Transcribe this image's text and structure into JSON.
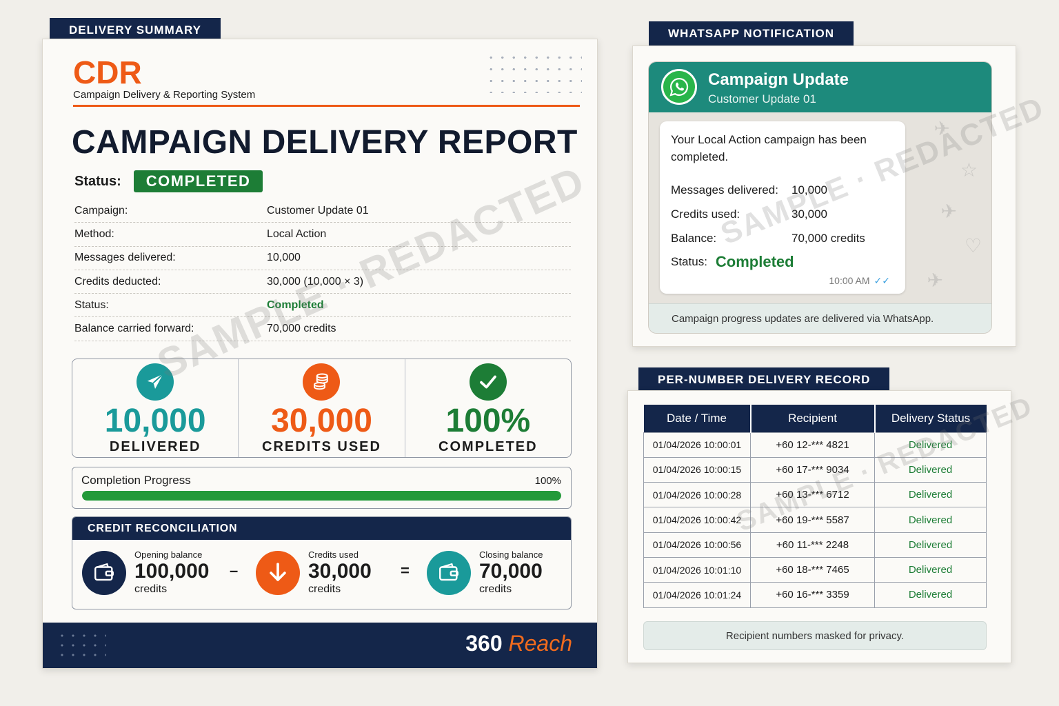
{
  "delivery_summary": {
    "tab": "DELIVERY SUMMARY",
    "brand": "CDR",
    "brand_subtitle": "Campaign Delivery & Reporting System",
    "title": "CAMPAIGN DELIVERY REPORT",
    "status_label": "Status:",
    "status_value": "COMPLETED",
    "details": [
      {
        "label": "Campaign:",
        "value": "Customer Update 01"
      },
      {
        "label": "Method:",
        "value": "Local Action"
      },
      {
        "label": "Messages delivered:",
        "value": "10,000"
      },
      {
        "label": "Credits deducted:",
        "value": "30,000 (10,000 × 3)"
      },
      {
        "label": "Status:",
        "value": "Completed"
      },
      {
        "label": "Balance carried forward:",
        "value": "70,000 credits"
      }
    ],
    "stats": [
      {
        "value": "10,000",
        "label": "DELIVERED",
        "icon": "paper-plane-icon",
        "color": "#1a9a9a"
      },
      {
        "value": "30,000",
        "label": "CREDITS USED",
        "icon": "coins-icon",
        "color": "#ee5a16"
      },
      {
        "value": "100%",
        "label": "COMPLETED",
        "icon": "checkmark-icon",
        "color": "#1d7d36"
      }
    ],
    "progress": {
      "label": "Completion Progress",
      "value_text": "100%",
      "fraction": 1.0
    },
    "reconciliation": {
      "title": "CREDIT RECONCILIATION",
      "opening": {
        "label": "Opening balance",
        "value": "100,000",
        "unit": "credits"
      },
      "minus": "–",
      "used": {
        "label": "Credits used",
        "value": "30,000",
        "unit": "credits"
      },
      "equals": "=",
      "closing": {
        "label": "Closing balance",
        "value": "70,000",
        "unit": "credits"
      }
    },
    "footer_logo_a": "360 ",
    "footer_logo_b": "Reach",
    "watermark": "SAMPLE · REDACTED"
  },
  "whatsapp": {
    "tab": "WHATSAPP NOTIFICATION",
    "title": "Campaign Update",
    "subtitle": "Customer Update 01",
    "message": "Your Local Action campaign has been completed.",
    "rows": [
      {
        "label": "Messages delivered:",
        "value": "10,000"
      },
      {
        "label": "Credits used:",
        "value": "30,000"
      },
      {
        "label": "Balance:",
        "value": "70,000 credits"
      }
    ],
    "status_label": "Status:",
    "status_value": "Completed",
    "time": "10:00 AM",
    "ticks": "✓✓",
    "footer": "Campaign progress updates are delivered via WhatsApp.",
    "watermark": "SAMPLE · REDACTED"
  },
  "records": {
    "tab": "PER-NUMBER DELIVERY RECORD",
    "columns": [
      "Date / Time",
      "Recipient",
      "Delivery Status"
    ],
    "rows": [
      [
        "01/04/2026 10:00:01",
        "+60 12-*** 4821",
        "Delivered"
      ],
      [
        "01/04/2026 10:00:15",
        "+60 17-*** 9034",
        "Delivered"
      ],
      [
        "01/04/2026 10:00:28",
        "+60 13-*** 6712",
        "Delivered"
      ],
      [
        "01/04/2026 10:00:42",
        "+60 19-*** 5587",
        "Delivered"
      ],
      [
        "01/04/2026 10:00:56",
        "+60 11-*** 2248",
        "Delivered"
      ],
      [
        "01/04/2026 10:01:10",
        "+60 18-*** 7465",
        "Delivered"
      ],
      [
        "01/04/2026 10:01:24",
        "+60 16-*** 3359",
        "Delivered"
      ]
    ],
    "note": "Recipient numbers masked for privacy.",
    "watermark": "SAMPLE · REDACTED"
  },
  "colors": {
    "navy": "#14264a",
    "orange": "#ee5a16",
    "green": "#1d7d36",
    "teal": "#1a9a9a"
  }
}
